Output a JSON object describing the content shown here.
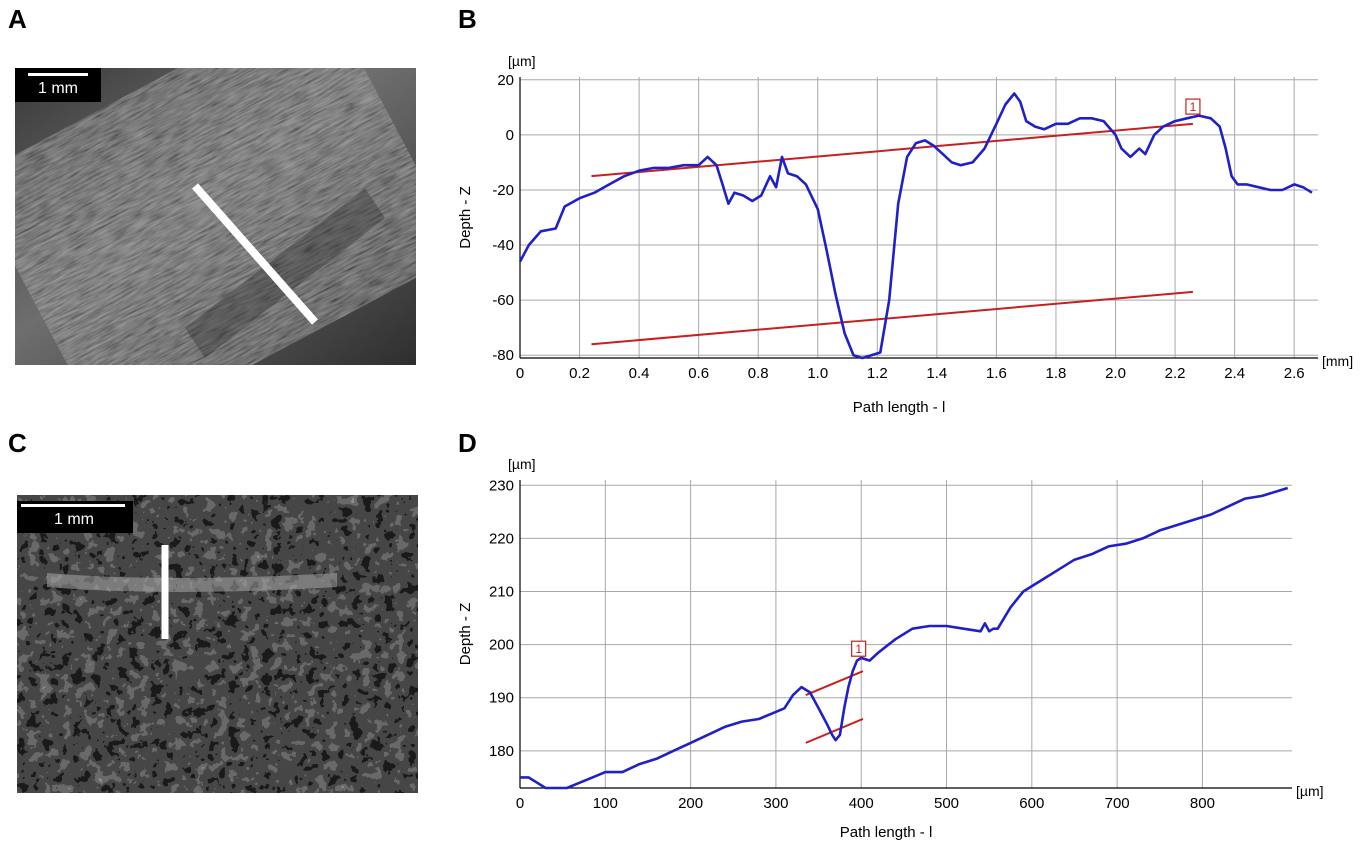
{
  "panels": {
    "a": {
      "letter": "A",
      "scalebar": "1 mm"
    },
    "b": {
      "letter": "B"
    },
    "c": {
      "letter": "C",
      "scalebar": "1 mm"
    },
    "d": {
      "letter": "D"
    }
  },
  "colors": {
    "profile": "#2020c8",
    "reference": "#c8201e",
    "grid": "#a8a8a8",
    "marker": "#c8201e"
  },
  "chart_data": [
    {
      "panel": "B",
      "type": "line",
      "xlabel": "Path length - l",
      "ylabel": "Depth - Z",
      "x_unit": "[mm]",
      "y_unit": "[µm]",
      "xlim": [
        0,
        2.68
      ],
      "ylim": [
        -81,
        21
      ],
      "xticks": [
        0,
        0.2,
        0.4,
        0.6,
        0.8,
        1.0,
        1.2,
        1.4,
        1.6,
        1.8,
        2.0,
        2.2,
        2.4,
        2.6
      ],
      "xtick_labels": [
        "0",
        "0.2",
        "0.4",
        "0.6",
        "0.8",
        "1.0",
        "1.2",
        "1.4",
        "1.6",
        "1.8",
        "2.0",
        "2.2",
        "2.4",
        "2.6"
      ],
      "yticks": [
        -80,
        -60,
        -40,
        -20,
        0,
        20
      ],
      "ytick_labels": [
        "-80",
        "-60",
        "-40",
        "-20",
        "0",
        "20"
      ],
      "grid": true,
      "profile": {
        "x": [
          0,
          0.03,
          0.07,
          0.12,
          0.15,
          0.2,
          0.25,
          0.3,
          0.35,
          0.4,
          0.45,
          0.5,
          0.55,
          0.6,
          0.63,
          0.66,
          0.68,
          0.7,
          0.72,
          0.75,
          0.78,
          0.81,
          0.84,
          0.86,
          0.88,
          0.9,
          0.93,
          0.96,
          1.0,
          1.03,
          1.06,
          1.09,
          1.12,
          1.15,
          1.18,
          1.21,
          1.24,
          1.27,
          1.3,
          1.33,
          1.36,
          1.39,
          1.42,
          1.45,
          1.48,
          1.52,
          1.56,
          1.6,
          1.63,
          1.66,
          1.68,
          1.7,
          1.73,
          1.76,
          1.8,
          1.84,
          1.88,
          1.92,
          1.96,
          2.0,
          2.02,
          2.05,
          2.08,
          2.1,
          2.13,
          2.16,
          2.2,
          2.24,
          2.28,
          2.32,
          2.35,
          2.37,
          2.39,
          2.41,
          2.44,
          2.48,
          2.52,
          2.56,
          2.6,
          2.63,
          2.66
        ],
        "y": [
          -46,
          -40,
          -35,
          -34,
          -26,
          -23,
          -21,
          -18,
          -15,
          -13,
          -12,
          -12,
          -11,
          -11,
          -8,
          -11,
          -18,
          -25,
          -21,
          -22,
          -24,
          -22,
          -15,
          -19,
          -8,
          -14,
          -15,
          -18,
          -27,
          -42,
          -58,
          -72,
          -80,
          -81,
          -80,
          -79,
          -60,
          -25,
          -8,
          -3,
          -2,
          -4,
          -7,
          -10,
          -11,
          -10,
          -5,
          4,
          11,
          15,
          12,
          5,
          3,
          2,
          4,
          4,
          6,
          6,
          5,
          0,
          -5,
          -8,
          -5,
          -7,
          0,
          3,
          5,
          6,
          7,
          6,
          3,
          -5,
          -15,
          -18,
          -18,
          -19,
          -20,
          -20,
          -18,
          -19,
          -21
        ]
      },
      "reference_lines": [
        {
          "x": [
            0.24,
            2.26
          ],
          "y": [
            -15,
            4
          ]
        },
        {
          "x": [
            0.24,
            2.26
          ],
          "y": [
            -76,
            -57
          ]
        }
      ],
      "marker": {
        "label": "1",
        "x": 2.26,
        "y": 5
      }
    },
    {
      "panel": "D",
      "type": "line",
      "xlabel": "Path length - l",
      "ylabel": "Depth - Z",
      "x_unit": "[µm]",
      "y_unit": "[µm]",
      "xlim": [
        0,
        905
      ],
      "ylim": [
        173,
        231
      ],
      "xticks": [
        0,
        100,
        200,
        300,
        400,
        500,
        600,
        700,
        800
      ],
      "xtick_labels": [
        "0",
        "100",
        "200",
        "300",
        "400",
        "500",
        "600",
        "700",
        "800"
      ],
      "yticks": [
        180,
        190,
        200,
        210,
        220,
        230
      ],
      "ytick_labels": [
        "180",
        "190",
        "200",
        "210",
        "220",
        "230"
      ],
      "grid": true,
      "profile": {
        "x": [
          0,
          10,
          20,
          30,
          40,
          55,
          70,
          85,
          100,
          120,
          140,
          160,
          180,
          200,
          220,
          240,
          260,
          280,
          295,
          310,
          320,
          330,
          340,
          350,
          360,
          366,
          370,
          375,
          380,
          385,
          390,
          395,
          400,
          410,
          420,
          440,
          460,
          480,
          500,
          520,
          540,
          545,
          550,
          555,
          560,
          575,
          590,
          610,
          630,
          650,
          670,
          690,
          710,
          730,
          750,
          770,
          790,
          810,
          830,
          850,
          870,
          890,
          900
        ],
        "y": [
          175,
          175,
          174,
          173,
          173,
          173,
          174,
          175,
          176,
          176,
          177.5,
          178.5,
          180,
          181.5,
          183,
          184.5,
          185.5,
          186,
          187,
          188,
          190.5,
          192,
          191,
          188,
          185,
          183,
          182,
          183,
          188,
          192,
          195,
          197,
          197.5,
          197,
          198.5,
          201,
          203,
          203.5,
          203.5,
          203,
          202.5,
          204,
          202.5,
          203,
          203,
          207,
          210,
          212,
          214,
          216,
          217,
          218.5,
          219,
          220,
          221.5,
          222.5,
          223.5,
          224.5,
          226,
          227.5,
          228,
          229,
          229.5
        ]
      },
      "reference_lines": [
        {
          "x": [
            335,
            402
          ],
          "y": [
            190.5,
            195
          ]
        },
        {
          "x": [
            335,
            402
          ],
          "y": [
            181.5,
            186
          ]
        }
      ],
      "marker": {
        "label": "1",
        "x": 397,
        "y": 196.5
      }
    }
  ]
}
